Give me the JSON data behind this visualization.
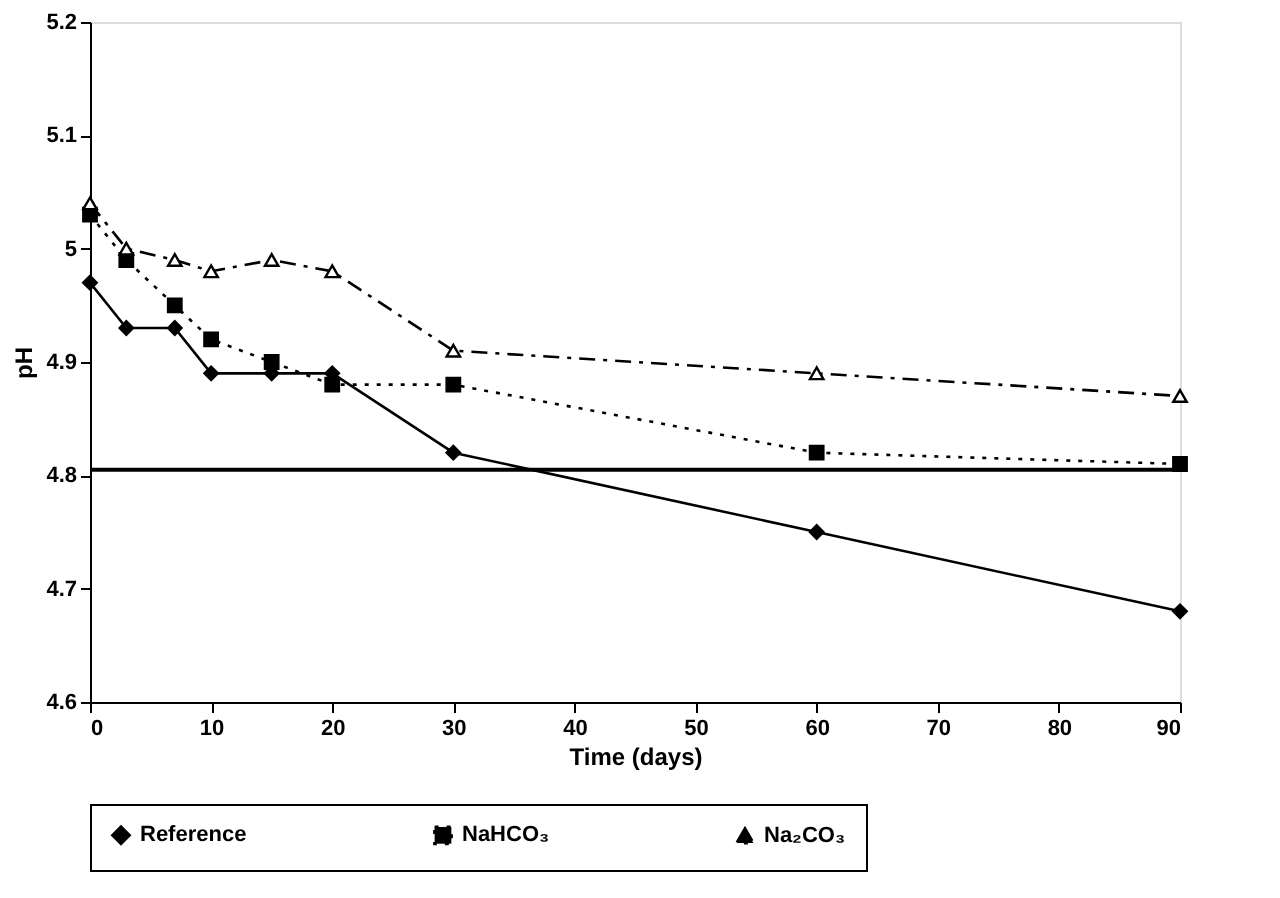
{
  "chart_data": {
    "type": "line",
    "xlabel": "Time (days)",
    "ylabel": "pH",
    "x": [
      0,
      3,
      7,
      10,
      15,
      20,
      30,
      60,
      90
    ],
    "series": [
      {
        "name": "Reference",
        "color": "#000000",
        "marker": "diamond",
        "line_style": "solid",
        "values": [
          4.97,
          4.93,
          4.93,
          4.89,
          4.89,
          4.89,
          4.82,
          4.75,
          4.68
        ]
      },
      {
        "name": "NaHCO₃",
        "color": "#000000",
        "marker": "square",
        "line_style": "dotted",
        "values": [
          5.03,
          4.99,
          4.95,
          4.92,
          4.9,
          4.88,
          4.88,
          4.82,
          4.81
        ]
      },
      {
        "name": "Na₂CO₃",
        "color": "#000000",
        "marker": "triangle",
        "line_style": "dashed",
        "values": [
          5.04,
          5.0,
          4.99,
          4.98,
          4.99,
          4.98,
          4.91,
          4.89,
          4.87
        ]
      }
    ],
    "xlim": [
      0,
      90
    ],
    "xticks": [
      0,
      10,
      20,
      30,
      40,
      50,
      60,
      70,
      80,
      90
    ],
    "ylim": [
      4.6,
      5.2
    ],
    "yticks": [
      4.6,
      4.7,
      4.8,
      4.9,
      5,
      5.1,
      5.2
    ],
    "ref_lines": [
      {
        "axis": "y",
        "value": 4.805,
        "label": null,
        "color": "#000000",
        "line_style": "solid"
      }
    ],
    "grid": false,
    "legend": "bottom"
  }
}
